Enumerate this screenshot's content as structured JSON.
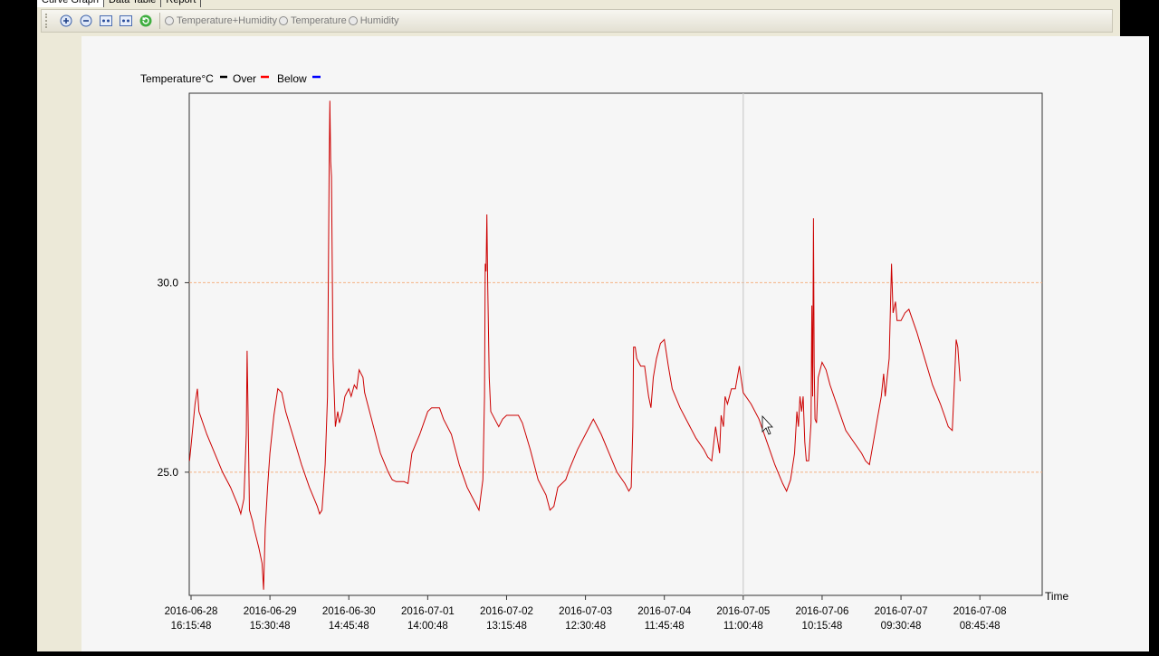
{
  "tabs": [
    {
      "label": "Curve Graph"
    },
    {
      "label": "Data Table"
    },
    {
      "label": "Report"
    }
  ],
  "toolbar": {
    "radios": [
      {
        "label": "Temperature+Humidity"
      },
      {
        "label": "Temperature"
      },
      {
        "label": "Humidity"
      }
    ]
  },
  "legend": {
    "title": "Temperature°C",
    "items": [
      {
        "label": "Over",
        "color": "#000000"
      },
      {
        "label": "Below",
        "color": "#ff0000"
      },
      {
        "label": "",
        "color": "#0000ff"
      }
    ]
  },
  "colors": {
    "series": "#cc0000",
    "threshold": "#f4b183",
    "cursor_line": "#cccccc"
  },
  "chart_data": {
    "type": "line",
    "ylim": [
      21.75,
      35.0
    ],
    "yticks": [
      {
        "value": 25,
        "label": "25.0"
      },
      {
        "value": 30,
        "label": "30.0"
      }
    ],
    "threshold_lines": [
      25,
      30
    ],
    "xlabel": "Time",
    "xlim": [
      0,
      10.79
    ],
    "xticks": [
      {
        "x": 0,
        "date": "2016-06-28",
        "time": "16:15:48"
      },
      {
        "x": 1,
        "date": "2016-06-29",
        "time": "15:30:48"
      },
      {
        "x": 2,
        "date": "2016-06-30",
        "time": "14:45:48"
      },
      {
        "x": 3,
        "date": "2016-07-01",
        "time": "14:00:48"
      },
      {
        "x": 4,
        "date": "2016-07-02",
        "time": "13:15:48"
      },
      {
        "x": 5,
        "date": "2016-07-03",
        "time": "12:30:48"
      },
      {
        "x": 6,
        "date": "2016-07-04",
        "time": "11:45:48"
      },
      {
        "x": 7,
        "date": "2016-07-05",
        "time": "11:00:48"
      },
      {
        "x": 8,
        "date": "2016-07-06",
        "time": "10:15:48"
      },
      {
        "x": 9,
        "date": "2016-07-07",
        "time": "09:30:48"
      },
      {
        "x": 10,
        "date": "2016-07-08",
        "time": "08:45:48"
      }
    ],
    "vertical_marker_x": 7,
    "series": [
      {
        "name": "Temperature°C",
        "color": "#cc0000",
        "points": [
          [
            -0.02,
            25.3
          ],
          [
            0.0,
            25.7
          ],
          [
            0.05,
            26.8
          ],
          [
            0.08,
            27.2
          ],
          [
            0.1,
            26.6
          ],
          [
            0.2,
            26.0
          ],
          [
            0.3,
            25.5
          ],
          [
            0.4,
            25.0
          ],
          [
            0.5,
            24.6
          ],
          [
            0.6,
            24.1
          ],
          [
            0.63,
            23.9
          ],
          [
            0.67,
            24.3
          ],
          [
            0.7,
            26.0
          ],
          [
            0.71,
            28.2
          ],
          [
            0.72,
            27.0
          ],
          [
            0.74,
            24.0
          ],
          [
            0.78,
            23.7
          ],
          [
            0.8,
            23.5
          ],
          [
            0.86,
            23.0
          ],
          [
            0.9,
            22.6
          ],
          [
            0.92,
            21.9
          ],
          [
            0.94,
            23.5
          ],
          [
            0.97,
            24.6
          ],
          [
            1.0,
            25.5
          ],
          [
            1.05,
            26.5
          ],
          [
            1.1,
            27.2
          ],
          [
            1.15,
            27.1
          ],
          [
            1.2,
            26.6
          ],
          [
            1.3,
            25.9
          ],
          [
            1.4,
            25.2
          ],
          [
            1.5,
            24.6
          ],
          [
            1.6,
            24.1
          ],
          [
            1.63,
            23.9
          ],
          [
            1.66,
            24.0
          ],
          [
            1.7,
            25.2
          ],
          [
            1.73,
            27.0
          ],
          [
            1.75,
            33.0
          ],
          [
            1.76,
            34.8
          ],
          [
            1.77,
            33.2
          ],
          [
            1.78,
            32.8
          ],
          [
            1.8,
            28.0
          ],
          [
            1.83,
            26.2
          ],
          [
            1.86,
            26.6
          ],
          [
            1.88,
            26.3
          ],
          [
            1.92,
            26.6
          ],
          [
            1.95,
            27.0
          ],
          [
            2.0,
            27.2
          ],
          [
            2.03,
            27.0
          ],
          [
            2.07,
            27.3
          ],
          [
            2.1,
            27.2
          ],
          [
            2.13,
            27.7
          ],
          [
            2.18,
            27.5
          ],
          [
            2.2,
            27.1
          ],
          [
            2.3,
            26.3
          ],
          [
            2.4,
            25.5
          ],
          [
            2.5,
            25.0
          ],
          [
            2.55,
            24.8
          ],
          [
            2.6,
            24.75
          ],
          [
            2.7,
            24.75
          ],
          [
            2.75,
            24.7
          ],
          [
            2.8,
            25.5
          ],
          [
            2.9,
            26.0
          ],
          [
            2.95,
            26.3
          ],
          [
            3.0,
            26.6
          ],
          [
            3.05,
            26.7
          ],
          [
            3.15,
            26.7
          ],
          [
            3.2,
            26.4
          ],
          [
            3.3,
            26.0
          ],
          [
            3.4,
            25.2
          ],
          [
            3.5,
            24.6
          ],
          [
            3.6,
            24.2
          ],
          [
            3.65,
            24.0
          ],
          [
            3.7,
            24.8
          ],
          [
            3.72,
            27.0
          ],
          [
            3.73,
            30.5
          ],
          [
            3.74,
            30.3
          ],
          [
            3.75,
            31.8
          ],
          [
            3.76,
            30.0
          ],
          [
            3.78,
            27.5
          ],
          [
            3.8,
            26.6
          ],
          [
            3.85,
            26.4
          ],
          [
            3.9,
            26.2
          ],
          [
            3.95,
            26.4
          ],
          [
            4.0,
            26.5
          ],
          [
            4.05,
            26.5
          ],
          [
            4.1,
            26.5
          ],
          [
            4.15,
            26.5
          ],
          [
            4.2,
            26.3
          ],
          [
            4.3,
            25.6
          ],
          [
            4.4,
            24.8
          ],
          [
            4.5,
            24.4
          ],
          [
            4.55,
            24.0
          ],
          [
            4.6,
            24.1
          ],
          [
            4.65,
            24.6
          ],
          [
            4.7,
            24.7
          ],
          [
            4.75,
            24.8
          ],
          [
            4.8,
            25.1
          ],
          [
            4.9,
            25.6
          ],
          [
            5.0,
            26.0
          ],
          [
            5.05,
            26.2
          ],
          [
            5.1,
            26.4
          ],
          [
            5.15,
            26.2
          ],
          [
            5.2,
            26.0
          ],
          [
            5.3,
            25.5
          ],
          [
            5.4,
            25.0
          ],
          [
            5.5,
            24.7
          ],
          [
            5.55,
            24.5
          ],
          [
            5.58,
            24.6
          ],
          [
            5.6,
            26.2
          ],
          [
            5.61,
            28.3
          ],
          [
            5.63,
            28.3
          ],
          [
            5.65,
            28.0
          ],
          [
            5.7,
            27.8
          ],
          [
            5.75,
            27.8
          ],
          [
            5.8,
            27.0
          ],
          [
            5.83,
            26.7
          ],
          [
            5.86,
            27.5
          ],
          [
            5.9,
            28.0
          ],
          [
            5.95,
            28.4
          ],
          [
            6.0,
            28.5
          ],
          [
            6.05,
            27.8
          ],
          [
            6.1,
            27.2
          ],
          [
            6.2,
            26.7
          ],
          [
            6.3,
            26.3
          ],
          [
            6.4,
            25.9
          ],
          [
            6.5,
            25.6
          ],
          [
            6.55,
            25.4
          ],
          [
            6.6,
            25.3
          ],
          [
            6.65,
            26.2
          ],
          [
            6.7,
            25.5
          ],
          [
            6.72,
            26.5
          ],
          [
            6.75,
            26.2
          ],
          [
            6.77,
            27.0
          ],
          [
            6.8,
            26.8
          ],
          [
            6.85,
            27.2
          ],
          [
            6.9,
            27.2
          ],
          [
            6.95,
            27.8
          ],
          [
            7.0,
            27.1
          ],
          [
            7.1,
            26.8
          ],
          [
            7.2,
            26.4
          ],
          [
            7.3,
            25.8
          ],
          [
            7.4,
            25.2
          ],
          [
            7.5,
            24.7
          ],
          [
            7.55,
            24.5
          ],
          [
            7.6,
            24.8
          ],
          [
            7.65,
            25.5
          ],
          [
            7.68,
            26.6
          ],
          [
            7.7,
            26.2
          ],
          [
            7.72,
            27.0
          ],
          [
            7.74,
            26.6
          ],
          [
            7.76,
            27.0
          ],
          [
            7.78,
            25.8
          ],
          [
            7.8,
            25.3
          ],
          [
            7.83,
            25.3
          ],
          [
            7.86,
            26.3
          ],
          [
            7.87,
            29.4
          ],
          [
            7.88,
            27.0
          ],
          [
            7.89,
            31.7
          ],
          [
            7.9,
            27.8
          ],
          [
            7.91,
            26.4
          ],
          [
            7.93,
            26.3
          ],
          [
            7.95,
            27.5
          ],
          [
            8.0,
            27.9
          ],
          [
            8.05,
            27.7
          ],
          [
            8.1,
            27.3
          ],
          [
            8.2,
            26.7
          ],
          [
            8.3,
            26.1
          ],
          [
            8.4,
            25.8
          ],
          [
            8.5,
            25.5
          ],
          [
            8.55,
            25.3
          ],
          [
            8.6,
            25.2
          ],
          [
            8.65,
            25.8
          ],
          [
            8.7,
            26.4
          ],
          [
            8.75,
            27.0
          ],
          [
            8.78,
            27.6
          ],
          [
            8.8,
            27.0
          ],
          [
            8.85,
            28.0
          ],
          [
            8.88,
            30.5
          ],
          [
            8.9,
            29.2
          ],
          [
            8.93,
            29.5
          ],
          [
            8.95,
            29.0
          ],
          [
            9.0,
            29.0
          ],
          [
            9.05,
            29.2
          ],
          [
            9.1,
            29.3
          ],
          [
            9.15,
            29.0
          ],
          [
            9.2,
            28.7
          ],
          [
            9.3,
            28.0
          ],
          [
            9.4,
            27.3
          ],
          [
            9.5,
            26.8
          ],
          [
            9.55,
            26.5
          ],
          [
            9.6,
            26.2
          ],
          [
            9.65,
            26.1
          ],
          [
            9.68,
            27.5
          ],
          [
            9.7,
            28.5
          ],
          [
            9.72,
            28.3
          ],
          [
            9.75,
            27.4
          ]
        ]
      }
    ]
  }
}
